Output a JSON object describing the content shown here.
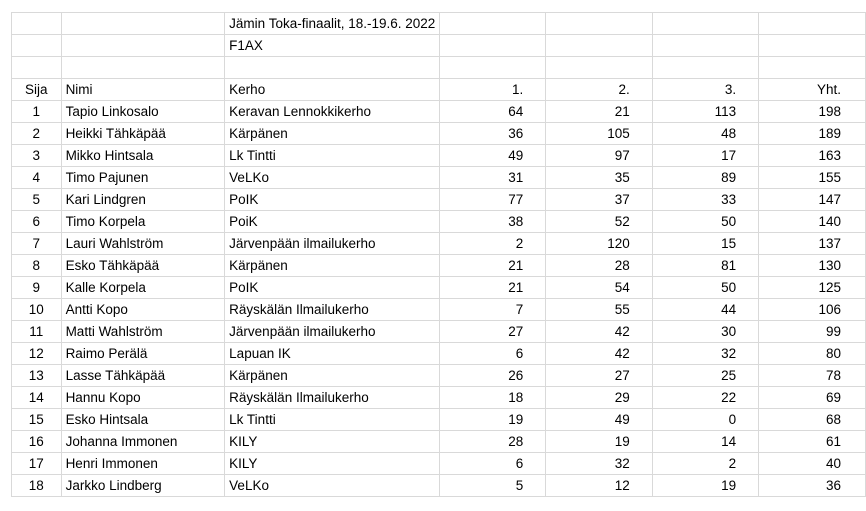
{
  "title": "Jämin Toka-finaalit, 18.-19.6. 2022",
  "class": "F1AX",
  "headers": [
    "Sija",
    "Nimi",
    "Kerho",
    "1.",
    "2.",
    "3.",
    "Yht."
  ],
  "rows": [
    [
      "1",
      "Tapio Linkosalo",
      "Keravan Lennokkikerho",
      "64",
      "21",
      "113",
      "198"
    ],
    [
      "2",
      "Heikki Tähkäpää",
      "Kärpänen",
      "36",
      "105",
      "48",
      "189"
    ],
    [
      "3",
      "Mikko Hintsala",
      "Lk Tintti",
      "49",
      "97",
      "17",
      "163"
    ],
    [
      "4",
      "Timo Pajunen",
      "VeLKo",
      "31",
      "35",
      "89",
      "155"
    ],
    [
      "5",
      "Kari Lindgren",
      "PoIK",
      "77",
      "37",
      "33",
      "147"
    ],
    [
      "6",
      "Timo Korpela",
      "PoiK",
      "38",
      "52",
      "50",
      "140"
    ],
    [
      "7",
      "Lauri Wahlström",
      "Järvenpään ilmailukerho",
      "2",
      "120",
      "15",
      "137"
    ],
    [
      "8",
      "Esko Tähkäpää",
      "Kärpänen",
      "21",
      "28",
      "81",
      "130"
    ],
    [
      "9",
      "Kalle Korpela",
      "PoIK",
      "21",
      "54",
      "50",
      "125"
    ],
    [
      "10",
      "Antti Kopo",
      "Räyskälän Ilmailukerho",
      "7",
      "55",
      "44",
      "106"
    ],
    [
      "11",
      "Matti Wahlström",
      "Järvenpään ilmailukerho",
      "27",
      "42",
      "30",
      "99"
    ],
    [
      "12",
      "Raimo Perälä",
      "Lapuan IK",
      "6",
      "42",
      "32",
      "80"
    ],
    [
      "13",
      "Lasse Tähkäpää",
      "Kärpänen",
      "26",
      "27",
      "25",
      "78"
    ],
    [
      "14",
      "Hannu Kopo",
      "Räyskälän Ilmailukerho",
      "18",
      "29",
      "22",
      "69"
    ],
    [
      "15",
      "Esko Hintsala",
      "Lk Tintti",
      "19",
      "49",
      "0",
      "68"
    ],
    [
      "16",
      "Johanna Immonen",
      "KILY",
      "28",
      "19",
      "14",
      "61"
    ],
    [
      "17",
      "Henri Immonen",
      "KILY",
      "6",
      "32",
      "2",
      "40"
    ],
    [
      "18",
      "Jarkko Lindberg",
      "VeLKo",
      "5",
      "12",
      "19",
      "36"
    ]
  ]
}
